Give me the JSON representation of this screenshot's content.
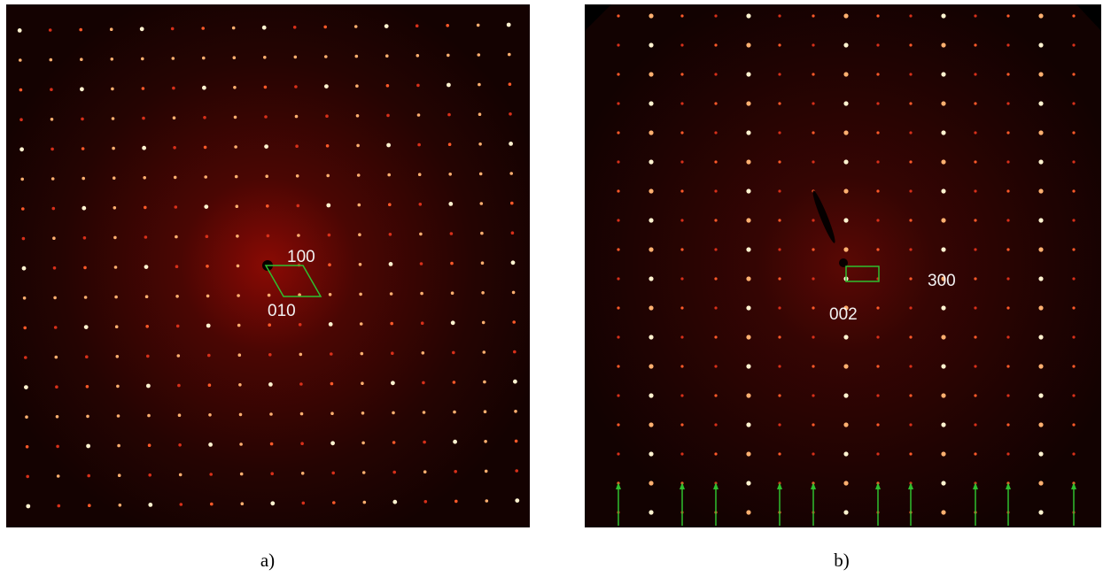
{
  "panels": [
    {
      "caption": "a)",
      "labels": [
        "100",
        "010"
      ]
    },
    {
      "caption": "b)",
      "labels": [
        "300",
        "002"
      ]
    }
  ]
}
